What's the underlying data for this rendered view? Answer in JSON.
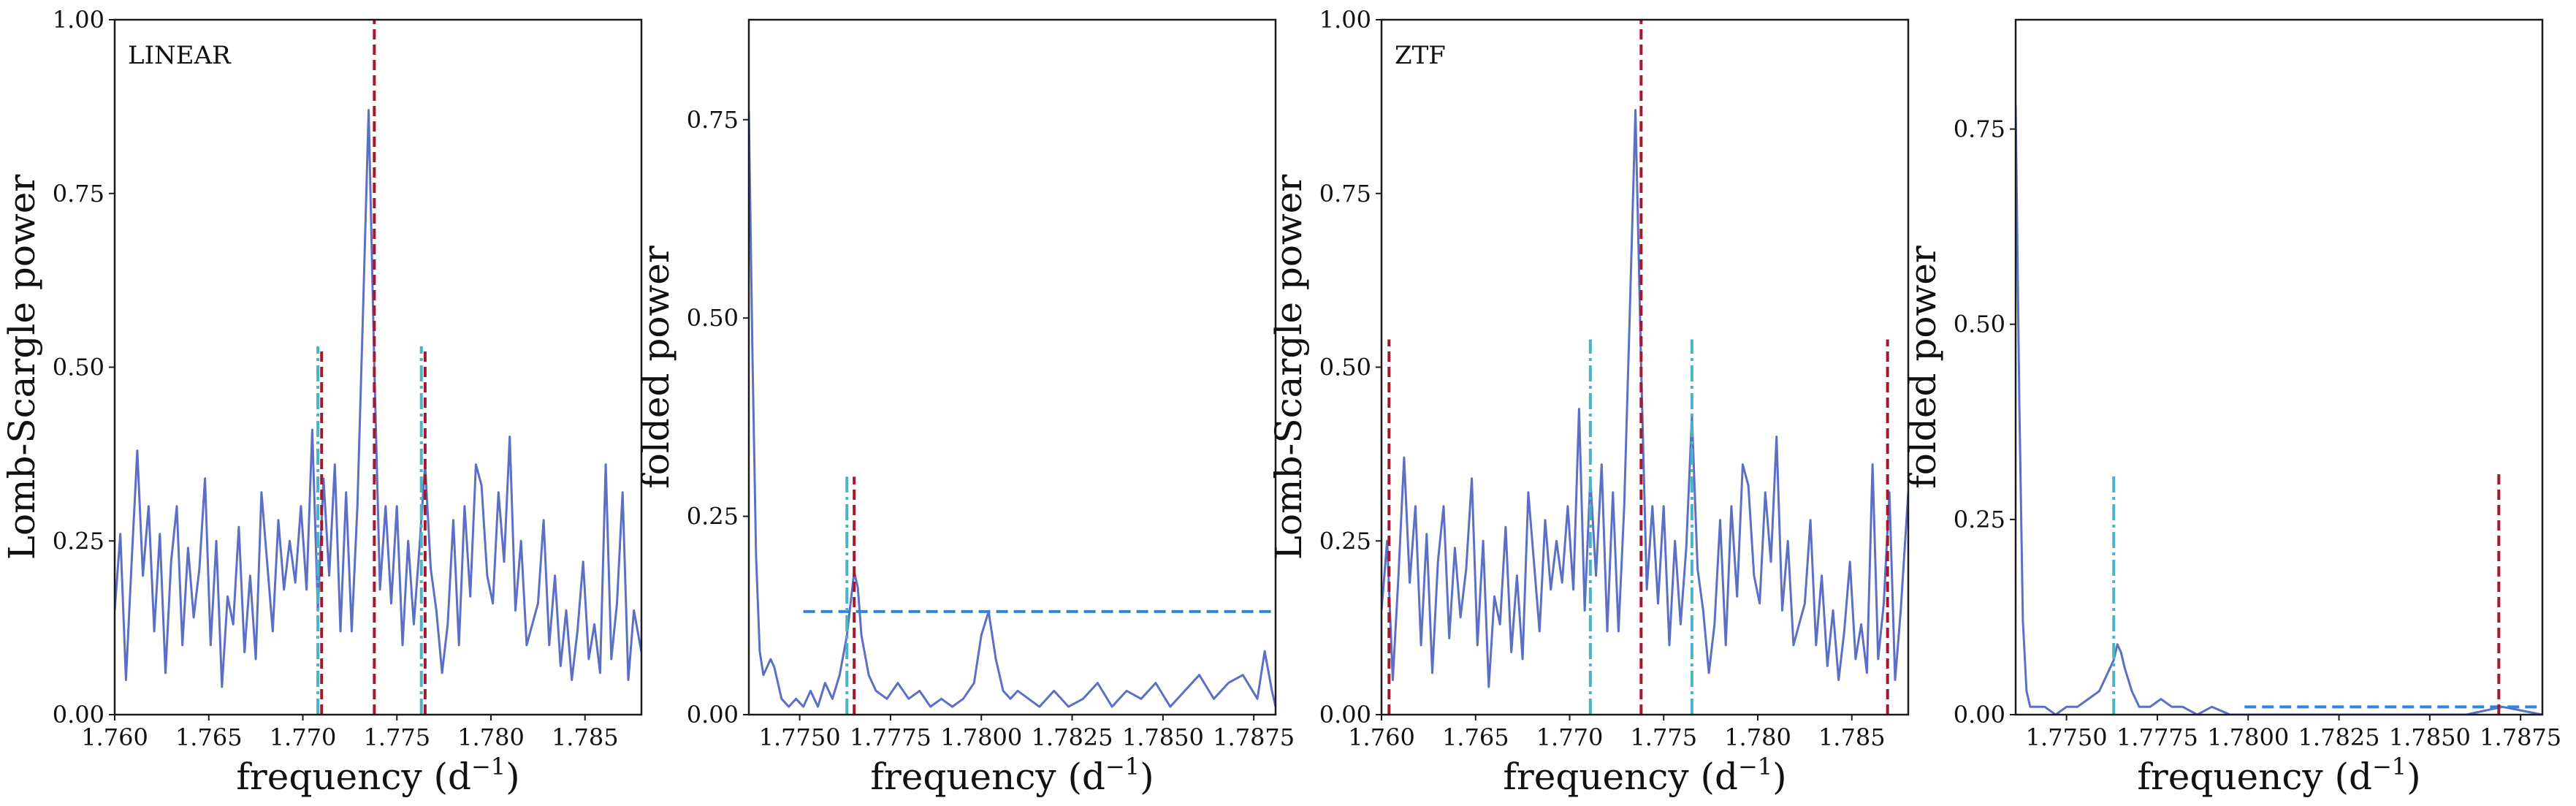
{
  "chart_data": [
    {
      "type": "line",
      "panel_label": "LINEAR",
      "xlabel": "frequency (d",
      "xlabel_sup": "−1",
      "xlabel_tail": ")",
      "ylabel": "Lomb-Scargle power",
      "xlim": [
        1.76,
        1.788
      ],
      "ylim": [
        0,
        1.0
      ],
      "xticks": [
        1.76,
        1.765,
        1.77,
        1.775,
        1.78,
        1.785
      ],
      "xtick_labels": [
        "1.760",
        "1.765",
        "1.770",
        "1.775",
        "1.780",
        "1.785"
      ],
      "yticks": [
        0,
        0.25,
        0.5,
        0.75,
        1.0
      ],
      "ytick_labels": [
        "0.00",
        "0.25",
        "0.50",
        "0.75",
        "1.00"
      ],
      "grid": false,
      "colors": {
        "curve": "#5b6fc4",
        "red": "#a3182e",
        "cyan": "#4ab3c6"
      },
      "series": [
        {
          "kind": "curve",
          "x": [
            1.76,
            1.7603,
            1.7606,
            1.7609,
            1.7612,
            1.7615,
            1.7618,
            1.7621,
            1.7624,
            1.7627,
            1.763,
            1.7633,
            1.7636,
            1.7639,
            1.7642,
            1.7645,
            1.7648,
            1.7651,
            1.7654,
            1.7657,
            1.766,
            1.7663,
            1.7666,
            1.7669,
            1.7672,
            1.7675,
            1.7678,
            1.7681,
            1.7684,
            1.7687,
            1.769,
            1.7693,
            1.7696,
            1.7699,
            1.7702,
            1.7705,
            1.7708,
            1.7711,
            1.7714,
            1.7717,
            1.772,
            1.7723,
            1.7726,
            1.7729,
            1.7732,
            1.7735,
            1.7738,
            1.7741,
            1.7744,
            1.7747,
            1.775,
            1.7753,
            1.7756,
            1.7759,
            1.7762,
            1.7765,
            1.7768,
            1.7771,
            1.7774,
            1.7777,
            1.778,
            1.7783,
            1.7786,
            1.7789,
            1.7792,
            1.7795,
            1.7798,
            1.7801,
            1.7804,
            1.7807,
            1.781,
            1.7813,
            1.7816,
            1.7819,
            1.7822,
            1.7825,
            1.7828,
            1.7831,
            1.7834,
            1.7837,
            1.784,
            1.7843,
            1.7846,
            1.7849,
            1.7852,
            1.7855,
            1.7858,
            1.7861,
            1.7864,
            1.7867,
            1.787,
            1.7873,
            1.7876,
            1.788
          ],
          "y": [
            0.15,
            0.26,
            0.05,
            0.22,
            0.38,
            0.2,
            0.3,
            0.12,
            0.26,
            0.06,
            0.22,
            0.3,
            0.1,
            0.24,
            0.14,
            0.21,
            0.34,
            0.1,
            0.25,
            0.04,
            0.17,
            0.13,
            0.27,
            0.09,
            0.2,
            0.08,
            0.32,
            0.22,
            0.12,
            0.28,
            0.18,
            0.25,
            0.19,
            0.3,
            0.18,
            0.41,
            0.15,
            0.34,
            0.2,
            0.36,
            0.12,
            0.32,
            0.12,
            0.3,
            0.58,
            0.87,
            0.5,
            0.18,
            0.3,
            0.16,
            0.3,
            0.1,
            0.25,
            0.13,
            0.24,
            0.36,
            0.21,
            0.15,
            0.06,
            0.13,
            0.28,
            0.1,
            0.3,
            0.17,
            0.36,
            0.33,
            0.2,
            0.16,
            0.32,
            0.22,
            0.4,
            0.15,
            0.25,
            0.1,
            0.13,
            0.16,
            0.28,
            0.1,
            0.2,
            0.07,
            0.15,
            0.05,
            0.12,
            0.22,
            0.08,
            0.13,
            0.06,
            0.36,
            0.08,
            0.16,
            0.32,
            0.05,
            0.15,
            0.09
          ]
        },
        {
          "kind": "vline",
          "style": "red-dashed",
          "x": 1.7738,
          "y0": 0,
          "y1": 1.0
        },
        {
          "kind": "vline",
          "style": "red-dashed",
          "x": 1.771,
          "y0": 0,
          "y1": 0.53
        },
        {
          "kind": "vline",
          "style": "red-dashed",
          "x": 1.7765,
          "y0": 0,
          "y1": 0.53
        },
        {
          "kind": "vline",
          "style": "cyan-dashdot",
          "x": 1.7708,
          "y0": 0,
          "y1": 0.53
        },
        {
          "kind": "vline",
          "style": "cyan-dashdot",
          "x": 1.7763,
          "y0": 0,
          "y1": 0.53
        }
      ]
    },
    {
      "type": "line",
      "panel_label": "",
      "xlabel": "frequency (d",
      "xlabel_sup": "−1",
      "xlabel_tail": ")",
      "ylabel": "folded power",
      "xlim": [
        1.7736,
        1.7881
      ],
      "ylim": [
        0,
        0.876
      ],
      "xticks": [
        1.775,
        1.7775,
        1.78,
        1.7825,
        1.785,
        1.7875
      ],
      "xtick_labels": [
        "1.7750",
        "1.7775",
        "1.7800",
        "1.7825",
        "1.7850",
        "1.7875"
      ],
      "yticks": [
        0,
        0.25,
        0.5,
        0.75
      ],
      "ytick_labels": [
        "0.00",
        "0.25",
        "0.50",
        "0.75"
      ],
      "grid": false,
      "colors": {
        "curve": "#5b6fc4",
        "red": "#a3182e",
        "cyan": "#4ab3c6",
        "blue": "#2e86de"
      },
      "series": [
        {
          "kind": "curve",
          "x": [
            1.7736,
            1.7737,
            1.7738,
            1.7739,
            1.774,
            1.7741,
            1.7742,
            1.7743,
            1.7745,
            1.7747,
            1.7749,
            1.7751,
            1.7753,
            1.7755,
            1.7757,
            1.7759,
            1.7761,
            1.7763,
            1.7764,
            1.7765,
            1.7766,
            1.7767,
            1.7769,
            1.7771,
            1.7774,
            1.7777,
            1.778,
            1.7783,
            1.7786,
            1.7789,
            1.7792,
            1.7795,
            1.7798,
            1.78,
            1.7802,
            1.7804,
            1.7806,
            1.7808,
            1.781,
            1.7813,
            1.7816,
            1.782,
            1.7824,
            1.7828,
            1.7832,
            1.7836,
            1.784,
            1.7844,
            1.7848,
            1.7852,
            1.7856,
            1.786,
            1.7864,
            1.7868,
            1.7872,
            1.7876,
            1.7878,
            1.788,
            1.7881
          ],
          "y": [
            0.76,
            0.45,
            0.2,
            0.08,
            0.05,
            0.06,
            0.07,
            0.06,
            0.02,
            0.01,
            0.02,
            0.01,
            0.03,
            0.01,
            0.04,
            0.02,
            0.05,
            0.1,
            0.14,
            0.18,
            0.16,
            0.1,
            0.05,
            0.03,
            0.02,
            0.04,
            0.02,
            0.03,
            0.01,
            0.02,
            0.01,
            0.02,
            0.04,
            0.1,
            0.13,
            0.07,
            0.03,
            0.02,
            0.03,
            0.02,
            0.01,
            0.03,
            0.01,
            0.02,
            0.04,
            0.01,
            0.03,
            0.02,
            0.04,
            0.01,
            0.03,
            0.05,
            0.02,
            0.04,
            0.05,
            0.02,
            0.08,
            0.03,
            0.01
          ]
        },
        {
          "kind": "hline",
          "style": "blue-dashed",
          "y": 0.13,
          "x0": 1.7751,
          "x1": 1.7881
        },
        {
          "kind": "vline",
          "style": "cyan-dashdot",
          "x": 1.7763,
          "y0": 0,
          "y1": 0.3
        },
        {
          "kind": "vline",
          "style": "red-dashed",
          "x": 1.7765,
          "y0": 0,
          "y1": 0.3
        }
      ]
    },
    {
      "type": "line",
      "panel_label": "ZTF",
      "xlabel": "frequency (d",
      "xlabel_sup": "−1",
      "xlabel_tail": ")",
      "ylabel": "Lomb-Scargle power",
      "xlim": [
        1.76,
        1.788
      ],
      "ylim": [
        0,
        1.0
      ],
      "xticks": [
        1.76,
        1.765,
        1.77,
        1.775,
        1.78,
        1.785
      ],
      "xtick_labels": [
        "1.760",
        "1.765",
        "1.770",
        "1.775",
        "1.780",
        "1.785"
      ],
      "yticks": [
        0,
        0.25,
        0.5,
        0.75,
        1.0
      ],
      "ytick_labels": [
        "0.00",
        "0.25",
        "0.50",
        "0.75",
        "1.00"
      ],
      "grid": false,
      "colors": {
        "curve": "#5b6fc4",
        "red": "#a3182e",
        "cyan": "#4ab3c6"
      },
      "series": [
        {
          "kind": "curve",
          "x": [
            1.76,
            1.7603,
            1.7606,
            1.7609,
            1.7612,
            1.7615,
            1.7618,
            1.7621,
            1.7624,
            1.7627,
            1.763,
            1.7633,
            1.7636,
            1.7639,
            1.7642,
            1.7645,
            1.7648,
            1.7651,
            1.7654,
            1.7657,
            1.766,
            1.7663,
            1.7666,
            1.7669,
            1.7672,
            1.7675,
            1.7678,
            1.7681,
            1.7684,
            1.7687,
            1.769,
            1.7693,
            1.7696,
            1.7699,
            1.7702,
            1.7705,
            1.7708,
            1.7711,
            1.7714,
            1.7717,
            1.772,
            1.7723,
            1.7726,
            1.7729,
            1.7732,
            1.7735,
            1.7738,
            1.7741,
            1.7744,
            1.7747,
            1.775,
            1.7753,
            1.7756,
            1.7759,
            1.7762,
            1.7765,
            1.7768,
            1.7771,
            1.7774,
            1.7777,
            1.778,
            1.7783,
            1.7786,
            1.7789,
            1.7792,
            1.7795,
            1.7798,
            1.7801,
            1.7804,
            1.7807,
            1.781,
            1.7813,
            1.7816,
            1.7819,
            1.7822,
            1.7825,
            1.7828,
            1.7831,
            1.7834,
            1.7837,
            1.784,
            1.7843,
            1.7846,
            1.7849,
            1.7852,
            1.7855,
            1.7858,
            1.7861,
            1.7864,
            1.7867,
            1.787,
            1.7873,
            1.7876,
            1.788
          ],
          "y": [
            0.15,
            0.25,
            0.05,
            0.2,
            0.37,
            0.19,
            0.3,
            0.1,
            0.26,
            0.06,
            0.22,
            0.3,
            0.11,
            0.24,
            0.14,
            0.21,
            0.34,
            0.1,
            0.25,
            0.04,
            0.17,
            0.13,
            0.27,
            0.09,
            0.2,
            0.08,
            0.32,
            0.22,
            0.12,
            0.28,
            0.18,
            0.25,
            0.19,
            0.3,
            0.18,
            0.44,
            0.15,
            0.34,
            0.2,
            0.36,
            0.12,
            0.32,
            0.12,
            0.3,
            0.58,
            0.87,
            0.5,
            0.18,
            0.3,
            0.16,
            0.3,
            0.1,
            0.25,
            0.13,
            0.24,
            0.43,
            0.21,
            0.15,
            0.06,
            0.13,
            0.28,
            0.1,
            0.3,
            0.17,
            0.36,
            0.33,
            0.2,
            0.16,
            0.32,
            0.22,
            0.4,
            0.15,
            0.25,
            0.1,
            0.13,
            0.16,
            0.28,
            0.1,
            0.2,
            0.07,
            0.15,
            0.05,
            0.12,
            0.22,
            0.08,
            0.13,
            0.06,
            0.36,
            0.08,
            0.16,
            0.32,
            0.05,
            0.15,
            0.32
          ]
        },
        {
          "kind": "vline",
          "style": "red-dashed",
          "x": 1.7738,
          "y0": 0,
          "y1": 1.0
        },
        {
          "kind": "vline",
          "style": "red-dashed",
          "x": 1.7604,
          "y0": 0,
          "y1": 0.54
        },
        {
          "kind": "vline",
          "style": "red-dashed",
          "x": 1.7869,
          "y0": 0,
          "y1": 0.54
        },
        {
          "kind": "vline",
          "style": "cyan-dashdot",
          "x": 1.7711,
          "y0": 0,
          "y1": 0.54
        },
        {
          "kind": "vline",
          "style": "cyan-dashdot",
          "x": 1.7765,
          "y0": 0,
          "y1": 0.54
        }
      ]
    },
    {
      "type": "line",
      "panel_label": "",
      "xlabel": "frequency (d",
      "xlabel_sup": "−1",
      "xlabel_tail": ")",
      "ylabel": "folded power",
      "xlim": [
        1.7736,
        1.7881
      ],
      "ylim": [
        0,
        0.89
      ],
      "xticks": [
        1.775,
        1.7775,
        1.78,
        1.7825,
        1.785,
        1.7875
      ],
      "xtick_labels": [
        "1.7750",
        "1.7775",
        "1.7800",
        "1.7825",
        "1.7850",
        "1.7875"
      ],
      "yticks": [
        0,
        0.25,
        0.5,
        0.75
      ],
      "ytick_labels": [
        "0.00",
        "0.25",
        "0.50",
        "0.75"
      ],
      "grid": false,
      "colors": {
        "curve": "#5b6fc4",
        "red": "#a3182e",
        "cyan": "#4ab3c6",
        "blue": "#2e86de"
      },
      "series": [
        {
          "kind": "curve",
          "x": [
            1.7736,
            1.7737,
            1.7738,
            1.7739,
            1.774,
            1.7742,
            1.7744,
            1.7747,
            1.775,
            1.7753,
            1.7756,
            1.7759,
            1.7761,
            1.7763,
            1.7764,
            1.7765,
            1.7766,
            1.7768,
            1.777,
            1.7773,
            1.7776,
            1.7779,
            1.7782,
            1.7786,
            1.779,
            1.7795,
            1.78,
            1.7805,
            1.781,
            1.782,
            1.783,
            1.784,
            1.785,
            1.786,
            1.787,
            1.7881
          ],
          "y": [
            0.78,
            0.4,
            0.12,
            0.03,
            0.01,
            0.01,
            0.01,
            0.0,
            0.01,
            0.01,
            0.02,
            0.03,
            0.05,
            0.07,
            0.09,
            0.08,
            0.06,
            0.03,
            0.01,
            0.01,
            0.02,
            0.01,
            0.01,
            0.0,
            0.01,
            0.0,
            0.0,
            0.0,
            0.0,
            0.0,
            0.0,
            0.0,
            0.0,
            0.0,
            0.01,
            0.0
          ]
        },
        {
          "kind": "hline",
          "style": "blue-dashed",
          "y": 0.01,
          "x0": 1.7799,
          "x1": 1.7881
        },
        {
          "kind": "vline",
          "style": "cyan-dashdot",
          "x": 1.7763,
          "y0": 0,
          "y1": 0.31
        },
        {
          "kind": "vline",
          "style": "red-dashed",
          "x": 1.7869,
          "y0": 0,
          "y1": 0.31
        }
      ]
    }
  ]
}
